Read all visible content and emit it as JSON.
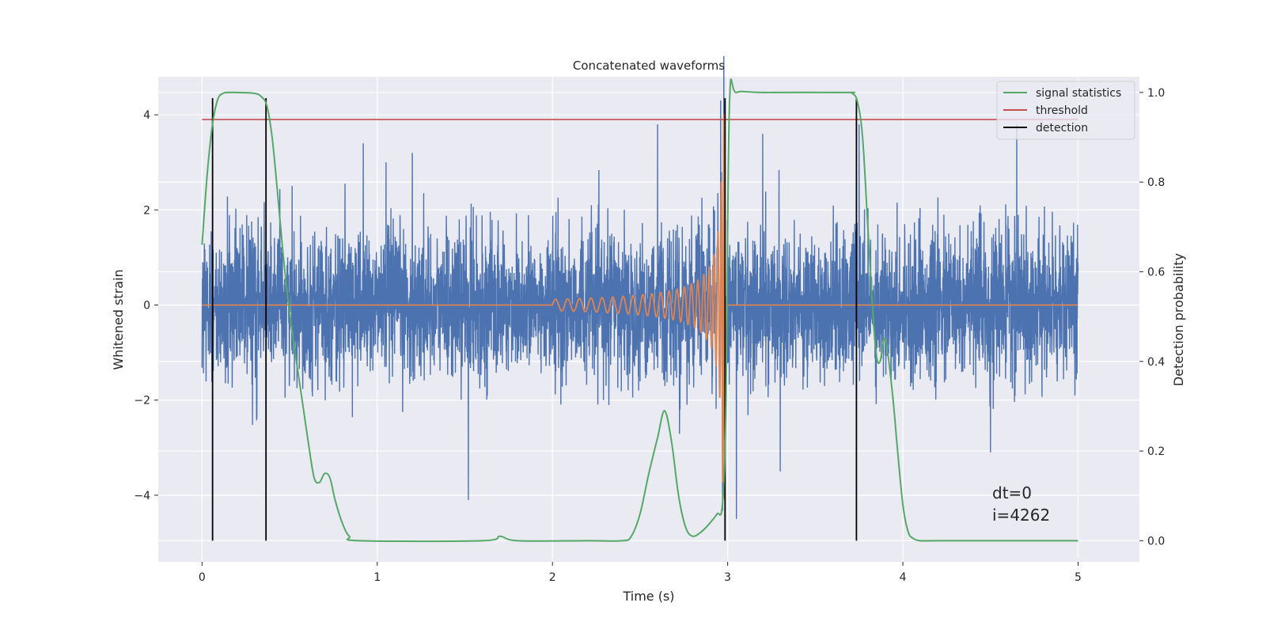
{
  "chart_data": {
    "type": "line",
    "title": "Concatenated waveforms",
    "xlabel": "Time (s)",
    "ylabel": "Whitened strain",
    "y2label": "Detection probability",
    "xlim": [
      -0.25,
      5.35
    ],
    "ylim": [
      -5.4,
      4.8
    ],
    "y2lim": [
      -0.047,
      1.035
    ],
    "xticks": [
      0,
      1,
      2,
      3,
      4,
      5
    ],
    "yticks": [
      -4,
      -2,
      0,
      2,
      4
    ],
    "y2ticks": [
      0.0,
      0.2,
      0.4,
      0.6,
      0.8,
      1.0
    ],
    "y2ticklabels": [
      "0.0",
      "0.2",
      "0.4",
      "0.6",
      "0.8",
      "1.0"
    ],
    "grid": true,
    "legend_placement": "upper-right",
    "colors": {
      "strain": "#4c72b0",
      "injection": "#dd8452",
      "signal_statistics": "#55a868",
      "threshold": "#c44e52",
      "detection": "#000000",
      "axes_bg": "#eaeaf2",
      "grid": "#ffffff"
    },
    "legend": [
      {
        "label": "signal statistics",
        "color": "#55a868"
      },
      {
        "label": "threshold",
        "color": "#c44e52"
      },
      {
        "label": "detection",
        "color": "#000000"
      }
    ],
    "series": {
      "strain": {
        "x_range": [
          0,
          5
        ],
        "std": 0.75,
        "envelope": [
          [
            0,
            1.0
          ],
          [
            1.98,
            1.0
          ],
          [
            2.0,
            1.0
          ],
          [
            3.0,
            1.0
          ],
          [
            5.0,
            1.0
          ]
        ],
        "extreme_points": [
          [
            0.92,
            3.4
          ],
          [
            1.05,
            3.0
          ],
          [
            1.52,
            -4.1
          ],
          [
            2.6,
            3.8
          ],
          [
            2.96,
            4.3
          ],
          [
            3.05,
            -4.5
          ],
          [
            3.3,
            -3.5
          ],
          [
            4.65,
            3.8
          ],
          [
            4.5,
            -3.1
          ],
          [
            3.75,
            3.8
          ],
          [
            1.2,
            3.2
          ],
          [
            3.2,
            3.6
          ]
        ]
      },
      "injection": {
        "x_range": [
          0,
          5
        ],
        "start": 2.0,
        "merger": 2.985,
        "amplitude_start": 0.12,
        "amplitude_peak": 4.1
      },
      "threshold": {
        "x": [
          0,
          5
        ],
        "y": [
          3.9,
          3.9
        ]
      },
      "detections_x": [
        0.06,
        0.365,
        2.985,
        3.735
      ],
      "signal_statistics": {
        "axis": "right",
        "x": [
          0,
          0.03,
          0.06,
          0.09,
          0.12,
          0.15,
          0.2,
          0.3,
          0.34,
          0.37,
          0.4,
          0.43,
          0.46,
          0.49,
          0.52,
          0.55,
          0.58,
          0.61,
          0.64,
          0.67,
          0.7,
          0.73,
          0.76,
          0.8,
          0.84,
          0.9,
          1.6,
          1.7,
          1.8,
          2.2,
          2.4,
          2.45,
          2.5,
          2.55,
          2.6,
          2.64,
          2.68,
          2.72,
          2.76,
          2.8,
          2.85,
          2.9,
          2.94,
          2.97,
          2.99,
          3.01,
          3.05,
          3.2,
          3.68,
          3.71,
          3.74,
          3.77,
          3.8,
          3.83,
          3.85,
          3.87,
          3.9,
          3.94,
          3.97,
          4.0,
          4.03,
          4.06,
          4.1,
          4.2,
          5.0
        ],
        "y": [
          0.66,
          0.82,
          0.93,
          0.985,
          0.998,
          1.0,
          1.0,
          0.998,
          0.99,
          0.97,
          0.9,
          0.78,
          0.65,
          0.54,
          0.45,
          0.37,
          0.29,
          0.21,
          0.14,
          0.13,
          0.15,
          0.14,
          0.09,
          0.04,
          0.01,
          0.0,
          0.0,
          0.01,
          0.0,
          0.0,
          0.0,
          0.01,
          0.06,
          0.15,
          0.23,
          0.29,
          0.22,
          0.1,
          0.03,
          0.01,
          0.02,
          0.04,
          0.06,
          0.08,
          0.3,
          0.97,
          1.0,
          1.0,
          1.0,
          0.998,
          0.98,
          0.9,
          0.7,
          0.5,
          0.41,
          0.4,
          0.45,
          0.33,
          0.2,
          0.08,
          0.02,
          0.005,
          0.0,
          0.0,
          0.0
        ]
      }
    },
    "annotations": [
      "dt=0",
      "i=4262"
    ]
  }
}
